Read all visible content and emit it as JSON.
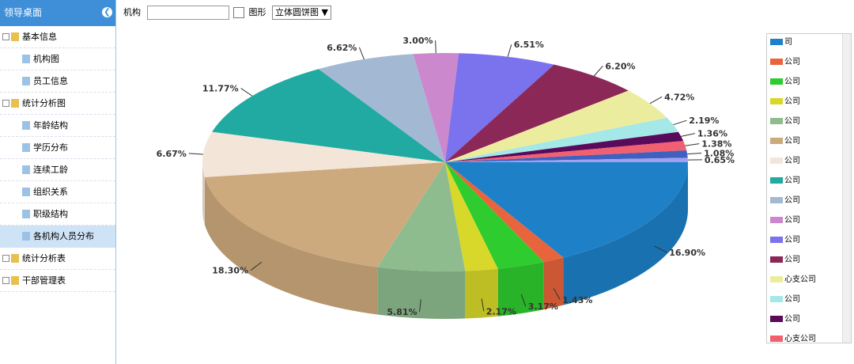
{
  "sidebar": {
    "title": "领导桌面",
    "items": [
      {
        "label": "基本信息",
        "level": 0
      },
      {
        "label": "机构图",
        "level": 1
      },
      {
        "label": "员工信息",
        "level": 1
      },
      {
        "label": "统计分析图",
        "level": 0
      },
      {
        "label": "年龄结构",
        "level": 1
      },
      {
        "label": "学历分布",
        "level": 1
      },
      {
        "label": "连续工龄",
        "level": 1
      },
      {
        "label": "组织关系",
        "level": 1
      },
      {
        "label": "职级结构",
        "level": 1
      },
      {
        "label": "各机构人员分布",
        "level": 1,
        "selected": true
      },
      {
        "label": "统计分析表",
        "level": 0
      },
      {
        "label": "干部管理表",
        "level": 0
      }
    ]
  },
  "toolbar": {
    "org_label": "机构",
    "chart_label": "图形",
    "chart_select": "立体圆饼图"
  },
  "chart_data": {
    "type": "pie3d",
    "categories": [
      "司",
      "公司",
      "公司",
      "公司",
      "公司",
      "公司",
      "公司",
      "公司",
      "公司",
      "公司",
      "公司",
      "公司",
      "心支公司",
      "公司",
      "公司",
      "心支公司",
      null,
      null
    ],
    "values": [
      16.9,
      1.43,
      3.17,
      2.17,
      5.81,
      18.3,
      6.67,
      11.77,
      6.62,
      3.0,
      6.51,
      6.2,
      4.72,
      2.19,
      1.36,
      1.38,
      1.08,
      0.65
    ],
    "value_labels": [
      "16.90%",
      "1.43%",
      "3.17%",
      "2.17%",
      "5.81%",
      "18.30%",
      "6.67%",
      "11.77%",
      "6.62%",
      "3.00%",
      "6.51%",
      "6.20%",
      "4.72%",
      "2.19%",
      "1.36%",
      "1.38%",
      "1.08%",
      "0.65%"
    ],
    "colors": [
      "#1e81c8",
      "#e8643c",
      "#2ecc2e",
      "#d8d82a",
      "#8fbc8f",
      "#cdaa7d",
      "#f3e6d8",
      "#20aaa2",
      "#a3b8d3",
      "#cc88cc",
      "#7b72ee",
      "#8b2858",
      "#ecec9e",
      "#a4e8e8",
      "#5a0a5a",
      "#f06070",
      "#4060c0",
      "#a0a0f0"
    ]
  }
}
